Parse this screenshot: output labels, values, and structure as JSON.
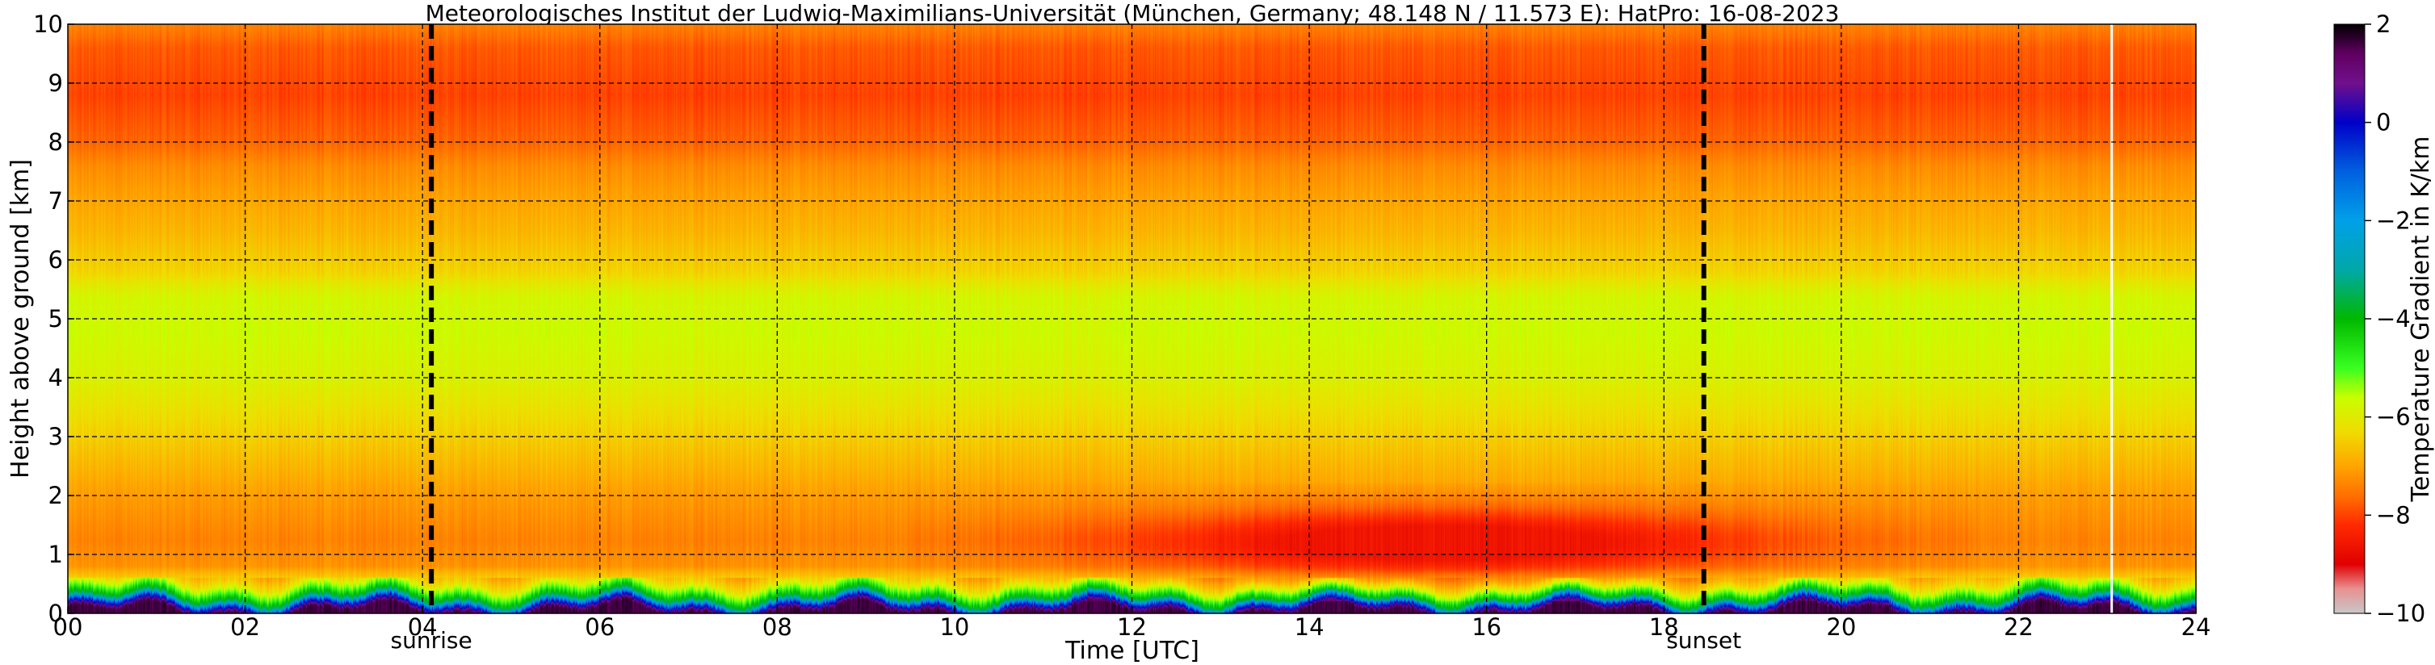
{
  "chart_data": {
    "type": "heatmap",
    "title": "Meteorologisches Institut der Ludwig-Maximilians-Universität (München, Germany; 48.148 N / 11.573 E):    HatPro: 16-08-2023",
    "xlabel": "Time [UTC]",
    "ylabel": "Height above ground [km]",
    "xlim": [
      0,
      24
    ],
    "ylim": [
      0,
      10
    ],
    "x_tick_labels": [
      "00",
      "02",
      "04",
      "06",
      "08",
      "10",
      "12",
      "14",
      "16",
      "18",
      "20",
      "22",
      "24"
    ],
    "y_tick_labels": [
      "0",
      "1",
      "2",
      "3",
      "4",
      "5",
      "6",
      "7",
      "8",
      "9",
      "10"
    ],
    "grid": true,
    "markers": [
      {
        "label": "sunrise",
        "time": 4.1
      },
      {
        "label": "sunset",
        "time": 18.45
      }
    ],
    "data_gap_time": 23.05,
    "colorbar": {
      "label": "Temperature Gradient in K/km",
      "min": -10,
      "max": 2,
      "tick_labels": [
        "2",
        "0",
        "−2",
        "−4",
        "−6",
        "−8",
        "−10"
      ],
      "colors": [
        {
          "value": -10,
          "color": "#c8c8c8"
        },
        {
          "value": -9.5,
          "color": "#e89090"
        },
        {
          "value": -9,
          "color": "#e00000"
        },
        {
          "value": -8.2,
          "color": "#ff2a00"
        },
        {
          "value": -7.6,
          "color": "#ff7000"
        },
        {
          "value": -7,
          "color": "#ffa500"
        },
        {
          "value": -6.3,
          "color": "#f0dc00"
        },
        {
          "value": -5.6,
          "color": "#c8ff00"
        },
        {
          "value": -5,
          "color": "#38ff20"
        },
        {
          "value": -4,
          "color": "#00b800"
        },
        {
          "value": -3,
          "color": "#00a8a8"
        },
        {
          "value": -2,
          "color": "#00a0e8"
        },
        {
          "value": -1,
          "color": "#0060e0"
        },
        {
          "value": 0,
          "color": "#0000c8"
        },
        {
          "value": 0.8,
          "color": "#70108c"
        },
        {
          "value": 1.4,
          "color": "#600060"
        },
        {
          "value": 2,
          "color": "#000000"
        }
      ]
    },
    "profile": [
      {
        "height": 0.05,
        "value": 1.6
      },
      {
        "height": 0.15,
        "value": -0.5
      },
      {
        "height": 0.25,
        "value": -3.5
      },
      {
        "height": 0.4,
        "value": -5.2
      },
      {
        "height": 0.55,
        "value": -6.3
      },
      {
        "height": 0.8,
        "value": -7.2
      },
      {
        "height": 1.25,
        "value": -7.4
      },
      {
        "height": 2.0,
        "value": -7.1
      },
      {
        "height": 2.8,
        "value": -6.6
      },
      {
        "height": 3.3,
        "value": -6.3
      },
      {
        "height": 4.0,
        "value": -5.9
      },
      {
        "height": 4.8,
        "value": -5.7
      },
      {
        "height": 5.4,
        "value": -5.8
      },
      {
        "height": 5.8,
        "value": -6.4
      },
      {
        "height": 6.5,
        "value": -6.8
      },
      {
        "height": 7.0,
        "value": -7.0
      },
      {
        "height": 7.6,
        "value": -7.3
      },
      {
        "height": 8.0,
        "value": -7.7
      },
      {
        "height": 8.8,
        "value": -8.0
      },
      {
        "height": 9.6,
        "value": -7.8
      },
      {
        "height": 10.0,
        "value": -7.4
      }
    ],
    "boundary_layer_anomaly": {
      "time_start": 9.5,
      "time_end": 21.5,
      "time_peak": 15.5,
      "height_center": 1.2,
      "value_min": -8.6
    }
  }
}
